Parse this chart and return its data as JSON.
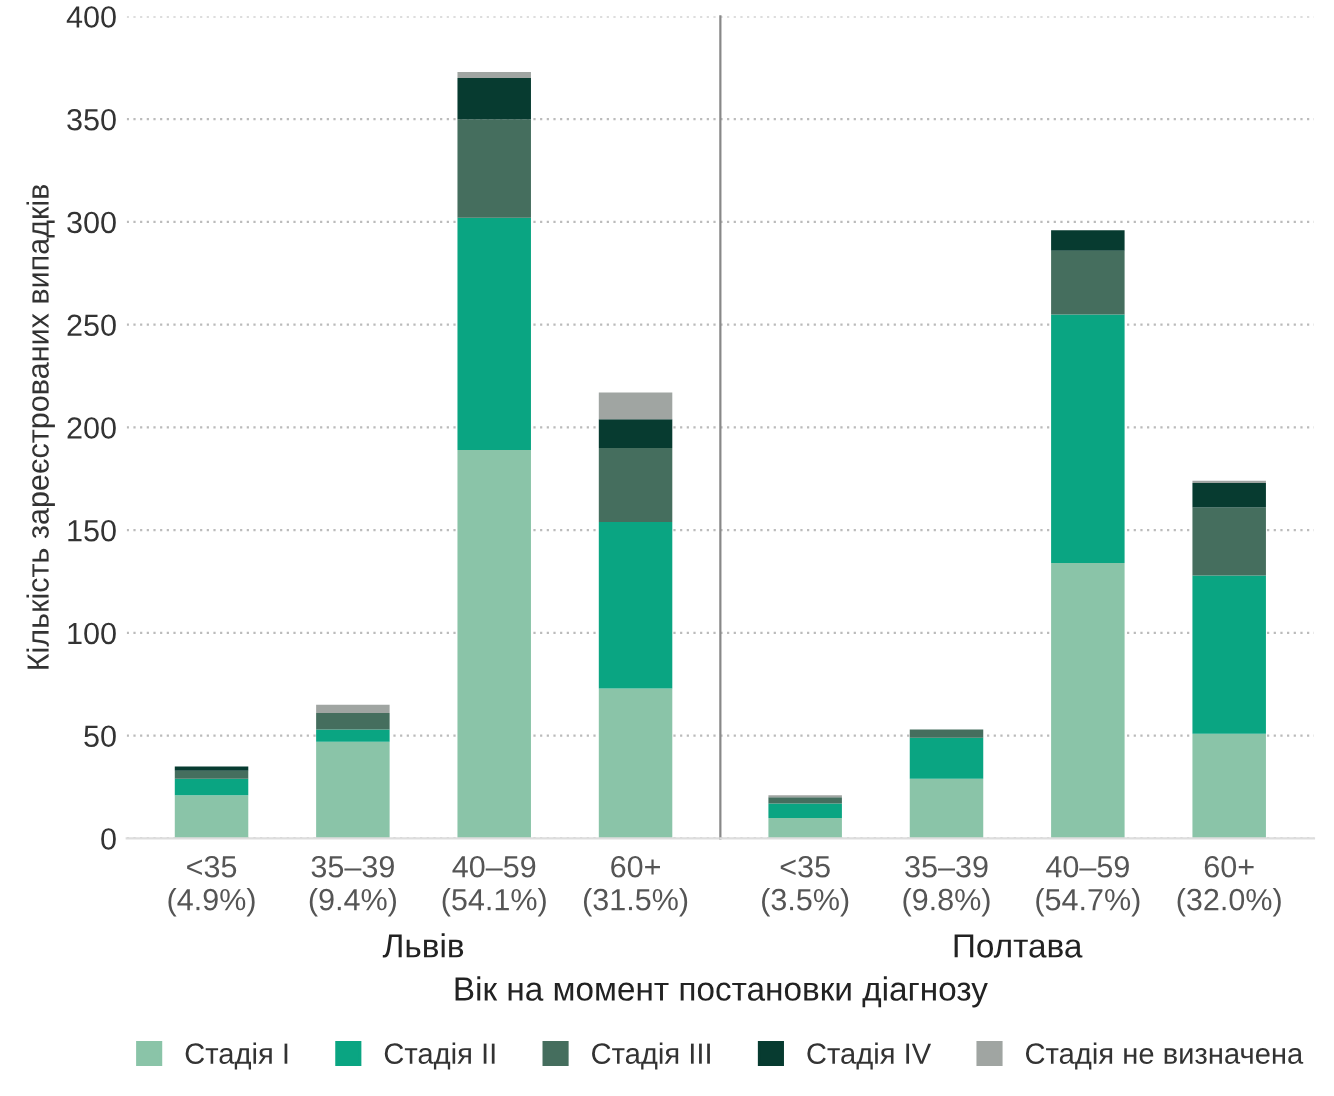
{
  "chart_data": [
    {
      "type": "bar",
      "stacked": true,
      "ylabel": "Кількість зареєстрованих випадків",
      "xlabel": "Львів",
      "categories": [
        "<35\n(4.9%)",
        "35–39\n(9.4%)",
        "40–59\n(54.1%)",
        "60+\n(31.5%)"
      ],
      "ylim": [
        0,
        400
      ],
      "yticks": [
        0,
        50,
        100,
        150,
        200,
        250,
        300,
        350,
        400
      ],
      "grid": "y",
      "legend": "bottom",
      "annotations": [
        "Вік на момент постановки діагнозу"
      ],
      "series": [
        {
          "name": "Стадія I",
          "color": "#8ac4a8",
          "values": [
            21,
            47,
            189,
            73
          ]
        },
        {
          "name": "Стадія II",
          "color": "#0aa582",
          "values": [
            8,
            6,
            113,
            81
          ]
        },
        {
          "name": "Стадія III",
          "color": "#456e5e",
          "values": [
            4,
            8,
            48,
            36
          ]
        },
        {
          "name": "Стадія IV",
          "color": "#073b30",
          "values": [
            2,
            0,
            20,
            14
          ]
        },
        {
          "name": "Стадія не визначена",
          "color": "#a0a5a2",
          "values": [
            0,
            4,
            3,
            13
          ]
        }
      ]
    },
    {
      "type": "bar",
      "stacked": true,
      "xlabel": "Полтава",
      "categories": [
        "<35\n(3.5%)",
        "35–39\n(9.8%)",
        "40–59\n(54.7%)",
        "60+\n(32.0%)"
      ],
      "ylim": [
        0,
        400
      ],
      "yticks": [
        0,
        50,
        100,
        150,
        200,
        250,
        300,
        350,
        400
      ],
      "grid": "y",
      "tick_labels": "x",
      "series": [
        {
          "color": "#8ac4a8",
          "values": [
            10,
            29,
            134,
            51
          ]
        },
        {
          "color": "#0aa582",
          "values": [
            7,
            20,
            121,
            77
          ]
        },
        {
          "color": "#456e5e",
          "values": [
            3,
            4,
            31,
            33
          ]
        },
        {
          "color": "#073b30",
          "values": [
            0,
            0,
            10,
            12
          ]
        },
        {
          "color": "#a0a5a2",
          "values": [
            1,
            0,
            0,
            1
          ]
        }
      ]
    }
  ]
}
